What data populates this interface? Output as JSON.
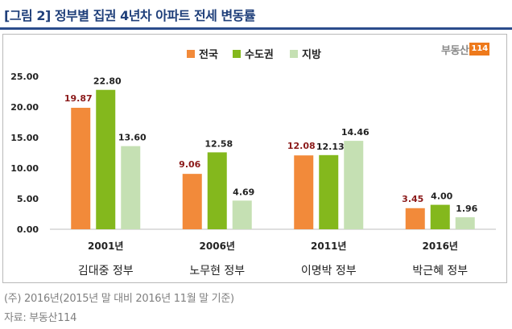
{
  "figure_title": "[그림 2] 정부별 집권 4년차 아파트 전세 변동률",
  "brand": {
    "text": "부동산",
    "number": "114"
  },
  "footnote": "(주) 2016년(2015년 말 대비 2016년 11월 말 기준)",
  "source": "자료: 부동산114",
  "chart_data": {
    "type": "bar",
    "title": "",
    "xlabel": "",
    "ylabel": "",
    "ylim": [
      0,
      25
    ],
    "yticks": [
      "0.00",
      "5.00",
      "10.00",
      "15.00",
      "20.00",
      "25.00"
    ],
    "grid": false,
    "legend_position": "top-center",
    "categories": [
      {
        "year": "2001년",
        "name": "김대중 정부"
      },
      {
        "year": "2006년",
        "name": "노무현 정부"
      },
      {
        "year": "2011년",
        "name": "이명박 정부"
      },
      {
        "year": "2016년",
        "name": "박근혜 정부"
      }
    ],
    "series": [
      {
        "name": "전국",
        "color": "#f28a3a",
        "label_color": "#8b1a1a",
        "values": [
          19.87,
          9.06,
          12.08,
          3.45
        ],
        "labels": [
          "19.87",
          "9.06",
          "12.08",
          "3.45"
        ]
      },
      {
        "name": "수도권",
        "color": "#84b81d",
        "label_color": "#222222",
        "values": [
          22.8,
          12.58,
          12.13,
          4.0
        ],
        "labels": [
          "22.80",
          "12.58",
          "12.13",
          "4.00"
        ]
      },
      {
        "name": "지방",
        "color": "#c5e0b3",
        "label_color": "#222222",
        "values": [
          13.6,
          4.69,
          14.46,
          1.96
        ],
        "labels": [
          "13.60",
          "4.69",
          "14.46",
          "1.96"
        ]
      }
    ]
  }
}
